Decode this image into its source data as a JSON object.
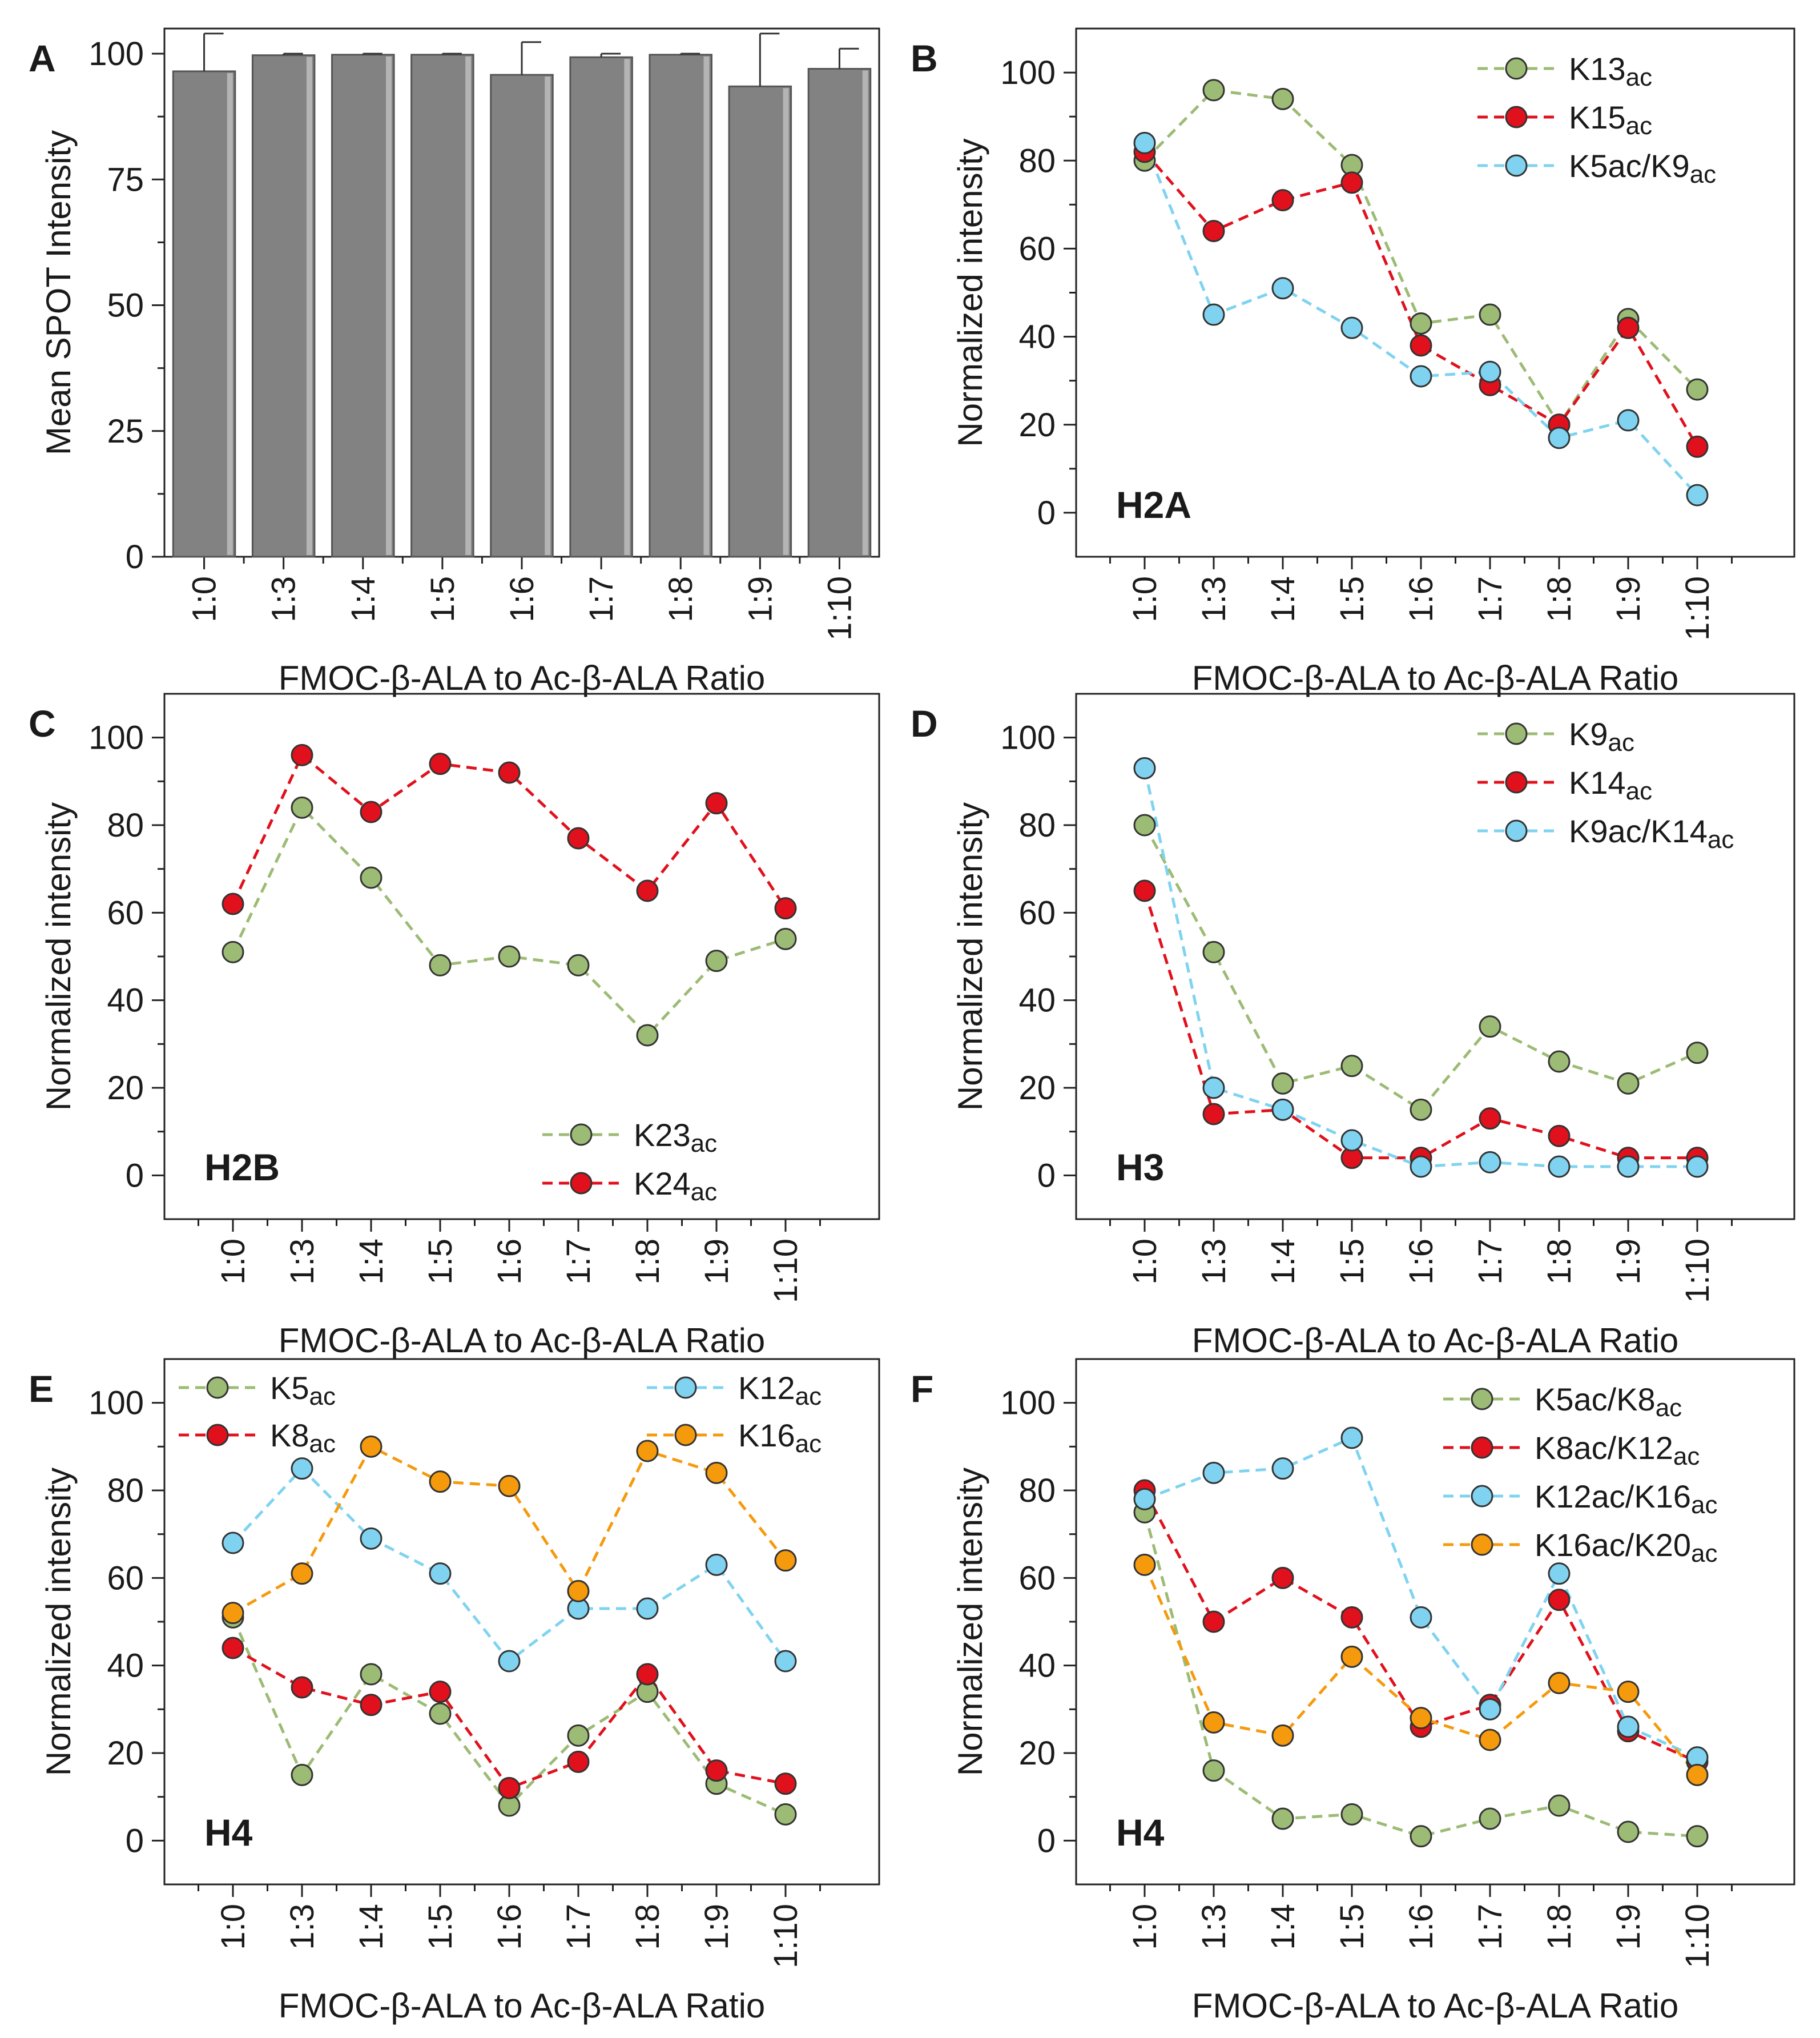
{
  "figure": {
    "xlabel": "FMOC-β-ALA to Ac-β-ALA Ratio",
    "categories": [
      "1:0",
      "1:3",
      "1:4",
      "1:5",
      "1:6",
      "1:7",
      "1:8",
      "1:9",
      "1:10"
    ]
  },
  "chart_data": [
    {
      "panel": "A",
      "type": "bar",
      "title": "",
      "xlabel": "FMOC-β-ALA to Ac-β-ALA Ratio",
      "ylabel": "Mean SPOT Intensity",
      "categories": [
        "1:0",
        "1:3",
        "1:4",
        "1:5",
        "1:6",
        "1:7",
        "1:8",
        "1:9",
        "1:10"
      ],
      "values": [
        96.5,
        99.7,
        99.8,
        99.8,
        95.8,
        99.3,
        99.8,
        93.5,
        97.0
      ],
      "errors": [
        7.5,
        0.3,
        0.2,
        0.2,
        6.5,
        0.7,
        0.2,
        10.5,
        4.0
      ],
      "ylim": [
        0,
        105
      ],
      "yticks": [
        0,
        25,
        50,
        75,
        100
      ],
      "bar_color": "#828282"
    },
    {
      "panel": "B",
      "type": "line",
      "label": "H2A",
      "xlabel": "FMOC-β-ALA to Ac-β-ALA Ratio",
      "ylabel": "Normalized intensity",
      "categories": [
        "1:0",
        "1:3",
        "1:4",
        "1:5",
        "1:6",
        "1:7",
        "1:8",
        "1:9",
        "1:10"
      ],
      "ylim": [
        -10,
        110
      ],
      "yticks": [
        0,
        20,
        40,
        60,
        80,
        100
      ],
      "legend_position": "top-right",
      "series": [
        {
          "name": "K13",
          "suffix": "ac",
          "color": "#9cbb74",
          "values": [
            80,
            96,
            94,
            79,
            43,
            45,
            20,
            44,
            28
          ]
        },
        {
          "name": "K15",
          "suffix": "ac",
          "color": "#e0111c",
          "values": [
            82,
            64,
            71,
            75,
            38,
            29,
            20,
            42,
            15
          ]
        },
        {
          "name": "K5ac/K9",
          "suffix": "ac",
          "color": "#7fd3f0",
          "values": [
            84,
            45,
            51,
            42,
            31,
            32,
            17,
            21,
            4
          ]
        }
      ]
    },
    {
      "panel": "C",
      "type": "line",
      "label": "H2B",
      "xlabel": "FMOC-β-ALA to Ac-β-ALA Ratio",
      "ylabel": "Normalized intensity",
      "categories": [
        "1:0",
        "1:3",
        "1:4",
        "1:5",
        "1:6",
        "1:7",
        "1:8",
        "1:9",
        "1:10"
      ],
      "ylim": [
        -10,
        110
      ],
      "yticks": [
        0,
        20,
        40,
        60,
        80,
        100
      ],
      "legend_position": "bottom-right",
      "series": [
        {
          "name": "K23",
          "suffix": "ac",
          "color": "#9cbb74",
          "values": [
            51,
            84,
            68,
            48,
            50,
            48,
            32,
            49,
            54
          ]
        },
        {
          "name": "K24",
          "suffix": "ac",
          "color": "#e0111c",
          "values": [
            62,
            96,
            83,
            94,
            92,
            77,
            65,
            85,
            61
          ]
        }
      ]
    },
    {
      "panel": "D",
      "type": "line",
      "label": "H3",
      "xlabel": "FMOC-β-ALA to Ac-β-ALA Ratio",
      "ylabel": "Normalized intensity",
      "categories": [
        "1:0",
        "1:3",
        "1:4",
        "1:5",
        "1:6",
        "1:7",
        "1:8",
        "1:9",
        "1:10"
      ],
      "ylim": [
        -10,
        110
      ],
      "yticks": [
        0,
        20,
        40,
        60,
        80,
        100
      ],
      "legend_position": "top-right",
      "series": [
        {
          "name": "K9",
          "suffix": "ac",
          "color": "#9cbb74",
          "values": [
            80,
            51,
            21,
            25,
            15,
            34,
            26,
            21,
            28
          ]
        },
        {
          "name": "K14",
          "suffix": "ac",
          "color": "#e0111c",
          "values": [
            65,
            14,
            15,
            4,
            4,
            13,
            9,
            4,
            4
          ]
        },
        {
          "name": "K9ac/K14",
          "suffix": "ac",
          "color": "#7fd3f0",
          "values": [
            93,
            20,
            15,
            8,
            2,
            3,
            2,
            2,
            2
          ]
        }
      ]
    },
    {
      "panel": "E",
      "type": "line",
      "label": "H4",
      "xlabel": "FMOC-β-ALA to Ac-β-ALA Ratio",
      "ylabel": "Normalized intensity",
      "categories": [
        "1:0",
        "1:3",
        "1:4",
        "1:5",
        "1:6",
        "1:7",
        "1:8",
        "1:9",
        "1:10"
      ],
      "ylim": [
        -10,
        110
      ],
      "yticks": [
        0,
        20,
        40,
        60,
        80,
        100
      ],
      "legend_position": "top, two columns",
      "series": [
        {
          "name": "K5",
          "suffix": "ac",
          "color": "#9cbb74",
          "values": [
            51,
            15,
            38,
            29,
            8,
            24,
            34,
            13,
            6
          ]
        },
        {
          "name": "K8",
          "suffix": "ac",
          "color": "#e0111c",
          "values": [
            44,
            35,
            31,
            34,
            12,
            18,
            38,
            16,
            13
          ]
        },
        {
          "name": "K12",
          "suffix": "ac",
          "color": "#7fd3f0",
          "values": [
            68,
            85,
            69,
            61,
            41,
            53,
            53,
            63,
            41
          ]
        },
        {
          "name": "K16",
          "suffix": "ac",
          "color": "#f59a0c",
          "values": [
            52,
            61,
            90,
            82,
            81,
            57,
            89,
            84,
            64
          ]
        }
      ]
    },
    {
      "panel": "F",
      "type": "line",
      "label": "H4",
      "xlabel": "FMOC-β-ALA to Ac-β-ALA Ratio",
      "ylabel": "Normalized intensity",
      "categories": [
        "1:0",
        "1:3",
        "1:4",
        "1:5",
        "1:6",
        "1:7",
        "1:8",
        "1:9",
        "1:10"
      ],
      "ylim": [
        -10,
        110
      ],
      "yticks": [
        0,
        20,
        40,
        60,
        80,
        100
      ],
      "legend_position": "top-right",
      "series": [
        {
          "name": "K5ac/K8",
          "suffix": "ac",
          "color": "#9cbb74",
          "values": [
            75,
            16,
            5,
            6,
            1,
            5,
            8,
            2,
            1
          ]
        },
        {
          "name": "K8ac/K12",
          "suffix": "ac",
          "color": "#e0111c",
          "values": [
            80,
            50,
            60,
            51,
            26,
            31,
            55,
            25,
            18
          ]
        },
        {
          "name": "K12ac/K16",
          "suffix": "ac",
          "color": "#7fd3f0",
          "values": [
            78,
            84,
            85,
            92,
            51,
            30,
            61,
            26,
            19
          ]
        },
        {
          "name": "K16ac/K20",
          "suffix": "ac",
          "color": "#f59a0c",
          "values": [
            63,
            27,
            24,
            42,
            28,
            23,
            36,
            34,
            15
          ]
        }
      ]
    }
  ]
}
